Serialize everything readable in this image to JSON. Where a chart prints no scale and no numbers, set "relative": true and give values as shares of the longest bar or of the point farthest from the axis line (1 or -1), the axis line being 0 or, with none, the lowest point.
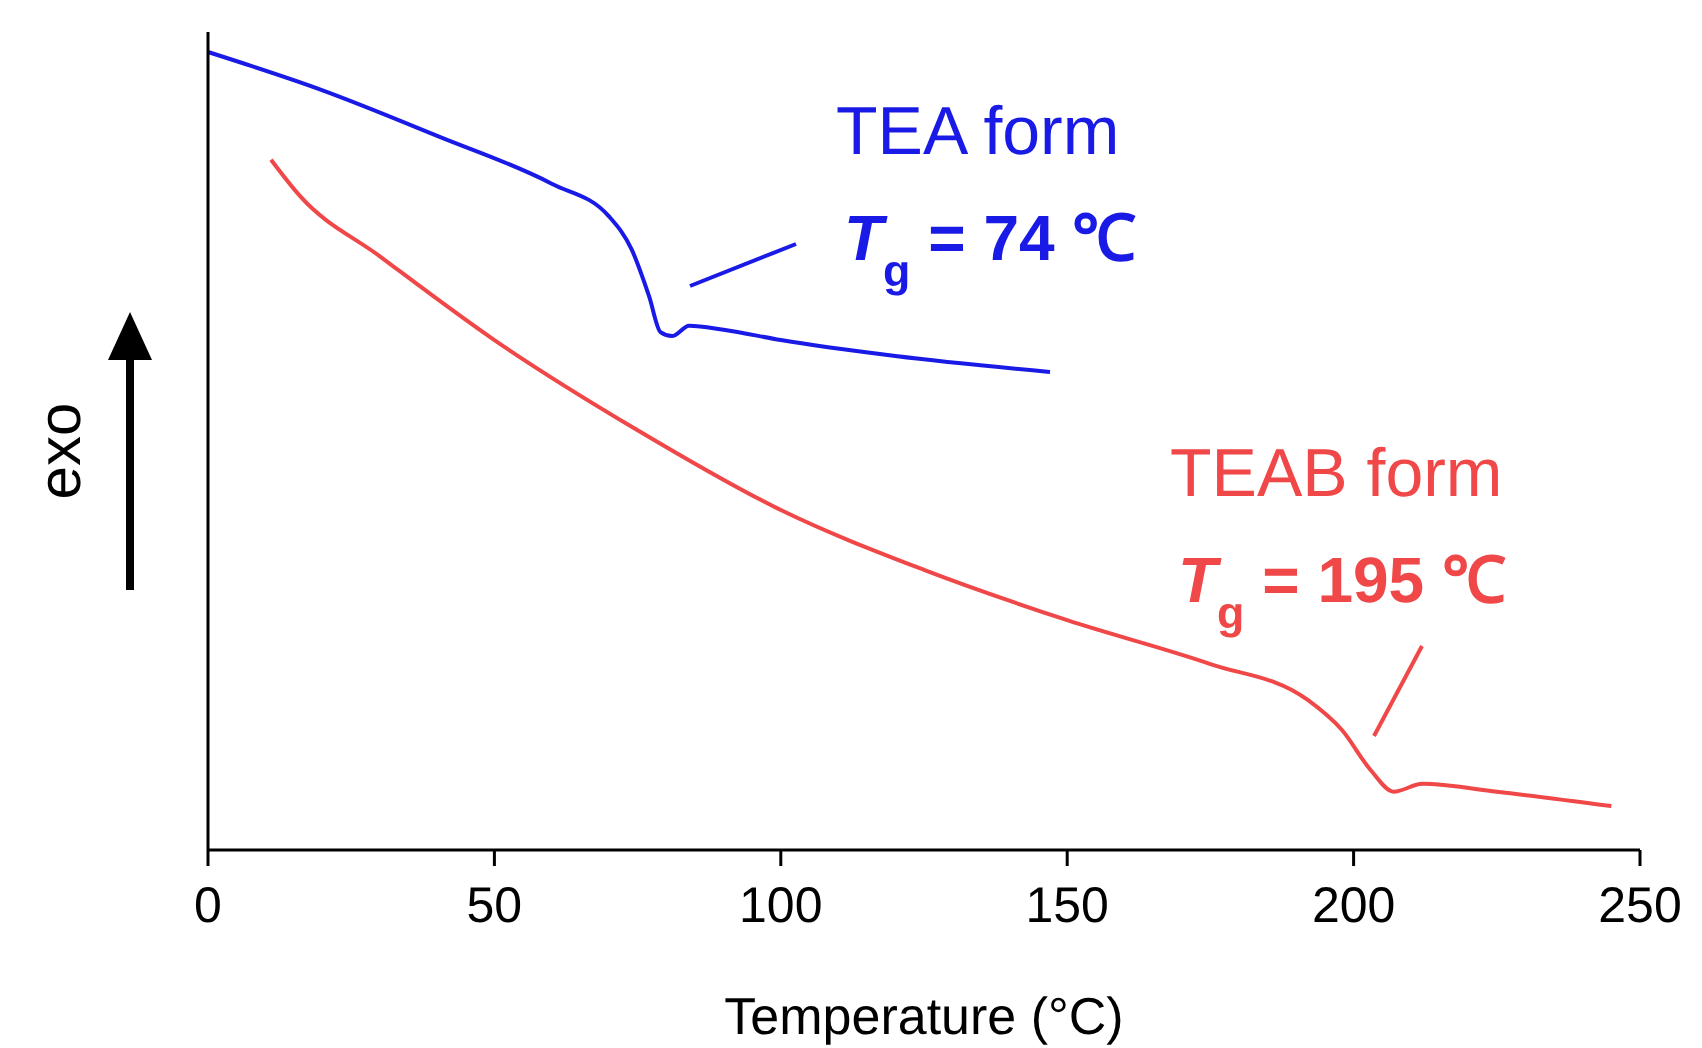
{
  "chart_data": {
    "type": "line",
    "relative": true,
    "xlabel": "Temperature (°C)",
    "ylabel": "exo",
    "xlim": [
      0,
      250
    ],
    "xticks": [
      0,
      50,
      100,
      150,
      200,
      250
    ],
    "grid": false,
    "line_style": "solid",
    "series": [
      {
        "color": "#1a1ae6",
        "x": [
          0,
          20,
          40,
          60,
          70,
          74,
          77,
          79,
          81,
          84,
          90,
          100,
          120,
          147
        ],
        "values": [
          1.0,
          0.952,
          0.895,
          0.835,
          0.794,
          0.752,
          0.694,
          0.649,
          0.644,
          0.657,
          0.652,
          0.639,
          0.619,
          0.599
        ]
      },
      {
        "color": "#f04848",
        "x": [
          11,
          16,
          30,
          50,
          75,
          100,
          125,
          150,
          175,
          192,
          198,
          203,
          207,
          212,
          225,
          245
        ],
        "values": [
          0.865,
          0.82,
          0.744,
          0.639,
          0.526,
          0.426,
          0.351,
          0.288,
          0.233,
          0.188,
          0.15,
          0.1,
          0.073,
          0.083,
          0.073,
          0.055
        ]
      }
    ],
    "annotations": [
      "TEA form",
      "T$_{g}$ = 74 ℃",
      "TEAB form",
      "T$_{g}$ = 195 ℃"
    ]
  }
}
